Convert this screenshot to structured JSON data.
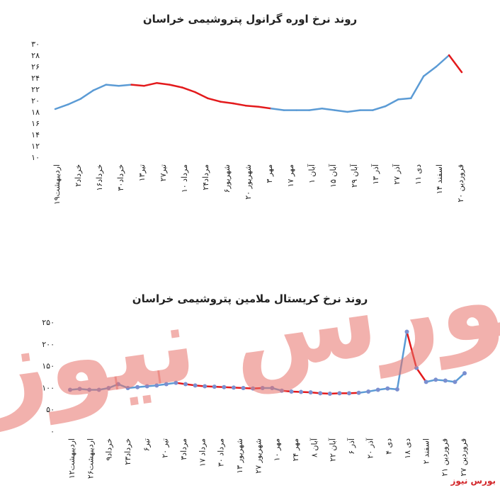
{
  "chart_data": [
    {
      "type": "line",
      "title": "روند نرخ اوره گرانول پتروشیمی خراسان",
      "y_ticks": [
        "۱۰",
        "۱۲",
        "۱۴",
        "۱۶",
        "۱۸",
        "۲۰",
        "۲۲",
        "۲۴",
        "۲۶",
        "۲۸",
        "۳۰"
      ],
      "ylim": [
        10,
        30
      ],
      "x_labels": [
        "۱۹اردیبهشت",
        "۲خرداد",
        "۱۶خرداد",
        "۳۰خرداد",
        "۱۳تیر",
        "۲۷تیر",
        "۱۰ مرداد",
        "۲۴مرداد",
        "۶شهریور",
        "۲۰ شهریور",
        "۳ مهر",
        "۱۷ مهر",
        "۱ آبان",
        "۱۵ آبان",
        "۲۹ آبان",
        "۱۳ آذر",
        "۲۷ آذر",
        "۱۱ دی",
        "۱۴ اسفند",
        "۲۰ فروردین"
      ],
      "values": [
        18.5,
        19.3,
        20.3,
        21.8,
        22.8,
        22.6,
        22.8,
        22.6,
        23.1,
        22.8,
        22.3,
        21.5,
        20.4,
        19.8,
        19.5,
        19.1,
        18.9,
        18.6,
        18.3,
        18.3,
        18.3,
        18.6,
        18.3,
        18.0,
        18.3,
        18.3,
        19.0,
        20.2,
        20.4,
        24.3,
        26.0,
        28.0,
        25.0
      ],
      "series_colors": {
        "normal": "#5b9bd5",
        "highlight": "#e31a1c"
      },
      "highlight_ranges": [
        [
          6,
          17
        ],
        [
          31,
          32
        ]
      ],
      "grid": false
    },
    {
      "type": "line",
      "title": "روند نرخ کریستال ملامین پتروشیمی خراسان",
      "y_ticks": [
        "۰",
        "۵۰",
        "۱۰۰",
        "۱۵۰",
        "۲۰۰",
        "۲۵۰"
      ],
      "ylim": [
        0,
        250
      ],
      "x_labels": [
        "۱۲اردیبهشت",
        "۲۶اردیبهشت",
        "۹خرداد",
        "۲۳خرداد",
        "۶تیر",
        "۲۰ تیر",
        "۳مرداد",
        "۱۷ مرداد",
        "۳۰ مرداد",
        "۱۳ شهریور",
        "۲۷ شهریور",
        "۱۰ مهر",
        "۲۴ مهر",
        "۸ آبان",
        "۲۲ آبان",
        "۶ آذر",
        "۲۰ آذر",
        "۴ دی",
        "۱۸ دی",
        "۲ اسفند",
        "۲۱ فروردین",
        "۲۷ فروردین"
      ],
      "values": [
        95,
        97,
        95,
        95,
        99,
        108,
        99,
        101,
        103,
        105,
        108,
        111,
        108,
        105,
        103,
        102,
        101,
        100,
        99,
        98,
        99,
        99,
        93,
        91,
        90,
        89,
        87,
        86,
        87,
        87,
        88,
        91,
        95,
        98,
        96,
        228,
        145,
        113,
        118,
        116,
        113,
        133
      ],
      "series_colors": {
        "normal": "#5b9bd5",
        "highlight": "#e31a1c",
        "marker": "#7a8fd0"
      },
      "highlight_ranges": [
        [
          11,
          20
        ],
        [
          22,
          30
        ],
        [
          35,
          37
        ]
      ],
      "grid": false
    }
  ],
  "watermark": {
    "text": "بورس نیوز"
  },
  "footer": {
    "logo_text": "بورس نیوز"
  }
}
